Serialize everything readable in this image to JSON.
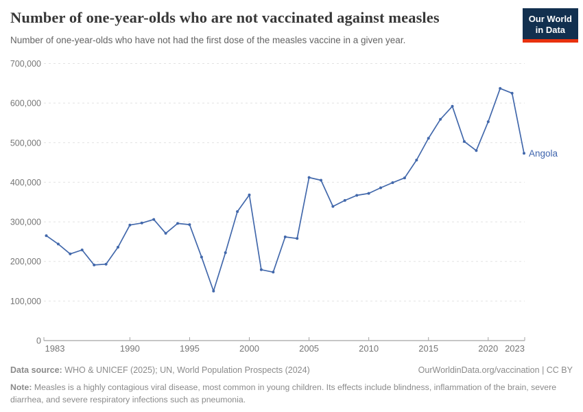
{
  "header": {
    "title": "Number of one-year-olds who are not vaccinated against measles",
    "subtitle": "Number of one-year-olds who have not had the first dose of the measles vaccine in a given year.",
    "logo": {
      "line1": "Our World",
      "line2": "in Data"
    }
  },
  "chart_data": {
    "type": "line",
    "title": "Number of one-year-olds who are not vaccinated against measles",
    "xlabel": "",
    "ylabel": "",
    "xlim": [
      1983,
      2023
    ],
    "ylim": [
      0,
      700000
    ],
    "x_ticks": [
      1983,
      1990,
      1995,
      2000,
      2005,
      2010,
      2015,
      2020,
      2023
    ],
    "y_ticks": [
      0,
      100000,
      200000,
      300000,
      400000,
      500000,
      600000,
      700000
    ],
    "grid": "horizontal-dashed",
    "legend_position": "end-of-line-label",
    "series": [
      {
        "name": "Angola",
        "color": "#4268ab",
        "x": [
          1983,
          1984,
          1985,
          1986,
          1987,
          1988,
          1989,
          1990,
          1991,
          1992,
          1993,
          1994,
          1995,
          1996,
          1997,
          1998,
          1999,
          2000,
          2001,
          2002,
          2003,
          2004,
          2005,
          2006,
          2007,
          2008,
          2009,
          2010,
          2011,
          2012,
          2013,
          2014,
          2015,
          2016,
          2017,
          2018,
          2019,
          2020,
          2021,
          2022,
          2023
        ],
        "values": [
          265000,
          244000,
          219000,
          229000,
          191000,
          193000,
          236000,
          292000,
          297000,
          306000,
          271000,
          296000,
          293000,
          211000,
          125000,
          222000,
          326000,
          368000,
          179000,
          173000,
          262000,
          258000,
          412000,
          405000,
          339000,
          354000,
          367000,
          372000,
          386000,
          399000,
          411000,
          456000,
          511000,
          559000,
          592000,
          503000,
          480000,
          553000,
          637000,
          625000,
          473000
        ]
      }
    ]
  },
  "footer": {
    "datasource_label": "Data source:",
    "datasource_text": "WHO & UNICEF (2025); UN, World Population Prospects (2024)",
    "credit": "OurWorldinData.org/vaccination | CC BY",
    "note_label": "Note:",
    "note_text": "Measles is a highly contagious viral disease, most common in young children. Its effects include blindness, inflammation of the brain, severe diarrhea, and severe respiratory infections such as pneumonia."
  },
  "colors": {
    "line": "#4268ab",
    "entity_label": "#3e64ad",
    "grid": "#e2e2e2",
    "axis": "#a3a3a3",
    "tick_label": "#767676",
    "logo_bg": "#12304f",
    "logo_red": "#e8310e"
  }
}
